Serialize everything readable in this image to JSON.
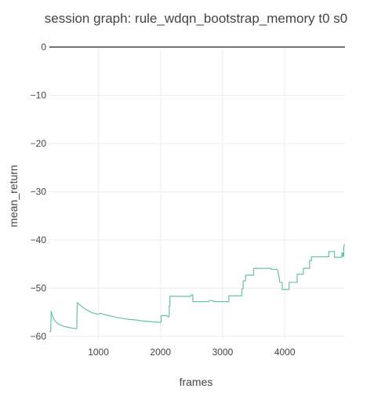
{
  "chart_data": {
    "type": "line",
    "title": "session graph: rule_wdqn_bootstrap_memory t0 s0",
    "xlabel": "frames",
    "ylabel": "mean_return",
    "xlim": [
      210,
      4970
    ],
    "ylim": [
      -60.5,
      0
    ],
    "x_ticks": [
      1000,
      2000,
      3000,
      4000
    ],
    "x_tick_labels": [
      "1000",
      "2000",
      "3000",
      "4000"
    ],
    "y_ticks": [
      0,
      -10,
      -20,
      -30,
      -40,
      -50,
      -60
    ],
    "y_tick_labels": [
      "0",
      "−10",
      "−20",
      "−30",
      "−40",
      "−50",
      "−60"
    ],
    "grid": true,
    "legend": "none",
    "colors": {
      "series": "#66c2a5",
      "zeroline": "#444444",
      "grid": "#eeeeee"
    },
    "series": [
      {
        "points": [
          [
            210,
            -59.0
          ],
          [
            230,
            -59.0
          ],
          [
            240,
            -54.8
          ],
          [
            260,
            -55.8
          ],
          [
            290,
            -56.6
          ],
          [
            330,
            -57.2
          ],
          [
            380,
            -57.6
          ],
          [
            440,
            -57.9
          ],
          [
            500,
            -58.1
          ],
          [
            580,
            -58.3
          ],
          [
            640,
            -58.4
          ],
          [
            650,
            -58.4
          ],
          [
            660,
            -53.0
          ],
          [
            700,
            -53.5
          ],
          [
            760,
            -54.1
          ],
          [
            820,
            -54.6
          ],
          [
            880,
            -55.0
          ],
          [
            950,
            -55.3
          ],
          [
            1000,
            -55.4
          ],
          [
            1030,
            -55.2
          ],
          [
            1100,
            -55.5
          ],
          [
            1200,
            -55.8
          ],
          [
            1300,
            -56.1
          ],
          [
            1400,
            -56.3
          ],
          [
            1500,
            -56.5
          ],
          [
            1600,
            -56.6
          ],
          [
            1700,
            -56.8
          ],
          [
            1800,
            -56.9
          ],
          [
            1900,
            -57.0
          ],
          [
            2000,
            -57.1
          ],
          [
            2010,
            -57.1
          ],
          [
            2010,
            -55.7
          ],
          [
            2100,
            -55.7
          ],
          [
            2120,
            -55.9
          ],
          [
            2140,
            -55.9
          ],
          [
            2140,
            -53.7
          ],
          [
            2150,
            -53.7
          ],
          [
            2150,
            -51.7
          ],
          [
            2200,
            -51.7
          ],
          [
            2300,
            -51.7
          ],
          [
            2400,
            -51.7
          ],
          [
            2490,
            -51.7
          ],
          [
            2490,
            -51.4
          ],
          [
            2520,
            -51.4
          ],
          [
            2520,
            -52.8
          ],
          [
            2600,
            -52.8
          ],
          [
            2700,
            -52.8
          ],
          [
            2780,
            -52.8
          ],
          [
            2790,
            -52.6
          ],
          [
            2850,
            -52.6
          ],
          [
            2860,
            -52.8
          ],
          [
            2950,
            -52.8
          ],
          [
            3000,
            -52.8
          ],
          [
            3100,
            -52.8
          ],
          [
            3100,
            -51.6
          ],
          [
            3200,
            -51.6
          ],
          [
            3300,
            -51.6
          ],
          [
            3310,
            -51.6
          ],
          [
            3310,
            -50.1
          ],
          [
            3330,
            -50.1
          ],
          [
            3330,
            -48.5
          ],
          [
            3370,
            -48.5
          ],
          [
            3370,
            -47.3
          ],
          [
            3400,
            -47.3
          ],
          [
            3500,
            -47.3
          ],
          [
            3500,
            -45.9
          ],
          [
            3600,
            -45.9
          ],
          [
            3700,
            -45.9
          ],
          [
            3780,
            -45.9
          ],
          [
            3780,
            -46.1
          ],
          [
            3880,
            -46.1
          ],
          [
            3890,
            -46.5
          ],
          [
            3910,
            -47.8
          ],
          [
            3920,
            -48.8
          ],
          [
            3960,
            -48.8
          ],
          [
            3960,
            -50.3
          ],
          [
            4000,
            -50.3
          ],
          [
            4070,
            -50.3
          ],
          [
            4070,
            -48.8
          ],
          [
            4100,
            -48.8
          ],
          [
            4200,
            -48.8
          ],
          [
            4200,
            -47.1
          ],
          [
            4300,
            -47.1
          ],
          [
            4300,
            -45.9
          ],
          [
            4400,
            -45.9
          ],
          [
            4400,
            -44.3
          ],
          [
            4430,
            -44.3
          ],
          [
            4430,
            -43.5
          ],
          [
            4500,
            -43.5
          ],
          [
            4600,
            -43.5
          ],
          [
            4700,
            -43.5
          ],
          [
            4710,
            -43.5
          ],
          [
            4710,
            -42.4
          ],
          [
            4800,
            -42.4
          ],
          [
            4800,
            -43.6
          ],
          [
            4900,
            -43.6
          ],
          [
            4920,
            -43.6
          ],
          [
            4920,
            -42.7
          ],
          [
            4935,
            -42.7
          ],
          [
            4935,
            -43.4
          ],
          [
            4950,
            -43.4
          ],
          [
            4950,
            -41.5
          ],
          [
            4960,
            -41.0
          ],
          [
            4970,
            -41.0
          ]
        ]
      }
    ]
  }
}
